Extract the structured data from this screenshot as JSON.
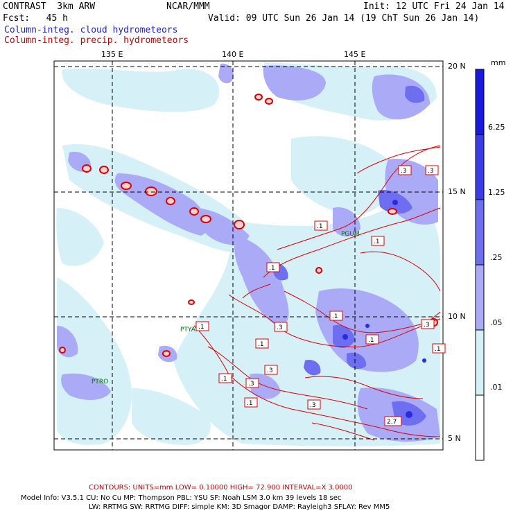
{
  "header": {
    "model": "CONTRAST  3km ARW",
    "org": "NCAR/MMM",
    "init": "Init: 12 UTC Fri 24 Jan 14",
    "fcst": "Fcst:   45 h",
    "valid": "Valid: 09 UTC Sun 26 Jan 14 (19 ChT Sun 26 Jan 14)",
    "field1": "Column-integ. cloud hydrometeors",
    "field2": "Column-integ. precip. hydrometeors",
    "field1_color": "#2222cc",
    "field2_color": "#cc0000"
  },
  "map": {
    "lon_labels": [
      "135 E",
      "140 E",
      "145 E"
    ],
    "lat_labels": [
      "20 N",
      "15 N",
      "10 N",
      "5 N"
    ],
    "stations": [
      "PGUM",
      "PTYA",
      "PTRO"
    ],
    "contour_labels": [
      ".3",
      ".3",
      ".1",
      ".1",
      ".1",
      ".1",
      ".1",
      ".3",
      ".1",
      ".1",
      ".3",
      ".3",
      ".1",
      ".3",
      ".1",
      ".1",
      ".3",
      "2.7"
    ]
  },
  "colorbar": {
    "units": "mm",
    "labels": [
      "6.25",
      "1.25",
      ".25",
      ".05",
      ".01"
    ],
    "colors": [
      "#1a1adc",
      "#3c3ce6",
      "#6e6ef0",
      "#aaaaf6",
      "#d6f0f8",
      "#ffffff"
    ]
  },
  "footer": {
    "contours": "CONTOURS:  UNITS=mm  LOW=  0.10000      HIGH=  72.900      INTERVAL=X  3.0000",
    "model_info_1": "Model Info: V3.5.1     CU: No Cu      MP: Thompson      PBL: YSU        SF: Noah LSM     3.0 km   39 levels    18 sec",
    "model_info_2": "LW: RRTMG     SW: RRTMG   DIFF: simple KM: 3D Smagor DAMP: Rayleigh3  SFLAY: Rev MM5"
  }
}
